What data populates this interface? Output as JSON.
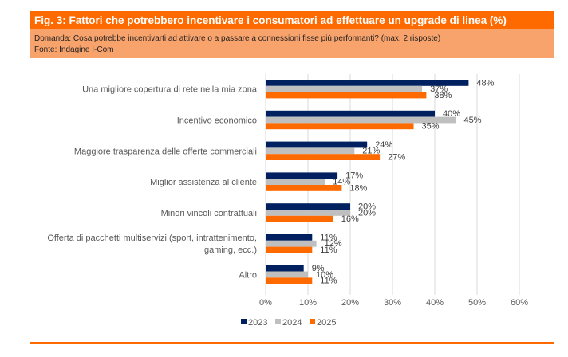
{
  "header": {
    "title": "Fig. 3: Fattori che potrebbero incentivare i consumatori ad effettuare un upgrade di linea (%)",
    "question": "Domanda: Cosa potrebbe incentivarti ad attivare o a passare a connessioni fisse più performanti? (max. 2 risposte)",
    "source": "Fonte: Indagine I-Com"
  },
  "colors": {
    "header_bg": "#ff6a00",
    "subheader_bg": "#f9a36c",
    "s2023": "#002060",
    "s2024": "#bfbfbf",
    "s2025": "#ff6a00",
    "grid": "#d9d9d9"
  },
  "chart_data": {
    "type": "bar",
    "orientation": "horizontal",
    "title": "Fattori che potrebbero incentivare i consumatori ad effettuare un upgrade di linea (%)",
    "xlabel": "",
    "ylabel": "",
    "xlim": [
      0,
      60
    ],
    "x_ticks": [
      "0%",
      "10%",
      "20%",
      "30%",
      "40%",
      "50%",
      "60%"
    ],
    "grid": true,
    "legend_position": "bottom",
    "categories": [
      [
        "Una migliore copertura di rete nella mia zona"
      ],
      [
        "Incentivo economico"
      ],
      [
        "Maggiore trasparenza delle offerte commerciali"
      ],
      [
        "Miglior assistenza al cliente"
      ],
      [
        "Minori vincoli contrattuali"
      ],
      [
        "Offerta di pacchetti multiservizi (sport, intrattenimento,",
        "gaming, ecc.)"
      ],
      [
        "Altro"
      ]
    ],
    "series": [
      {
        "name": "2023",
        "values": [
          48,
          40,
          24,
          17,
          20,
          11,
          9
        ],
        "labels": [
          "48%",
          "40%",
          "24%",
          "17%",
          "20%",
          "11%",
          "9%"
        ]
      },
      {
        "name": "2024",
        "values": [
          37,
          45,
          21,
          14,
          20,
          12,
          10
        ],
        "labels": [
          "37%",
          "45%",
          "21%",
          "14%",
          "20%",
          "12%",
          "10%"
        ]
      },
      {
        "name": "2025",
        "values": [
          38,
          35,
          27,
          18,
          16,
          11,
          11
        ],
        "labels": [
          "38%",
          "35%",
          "27%",
          "18%",
          "16%",
          "11%",
          "11%"
        ]
      }
    ]
  }
}
